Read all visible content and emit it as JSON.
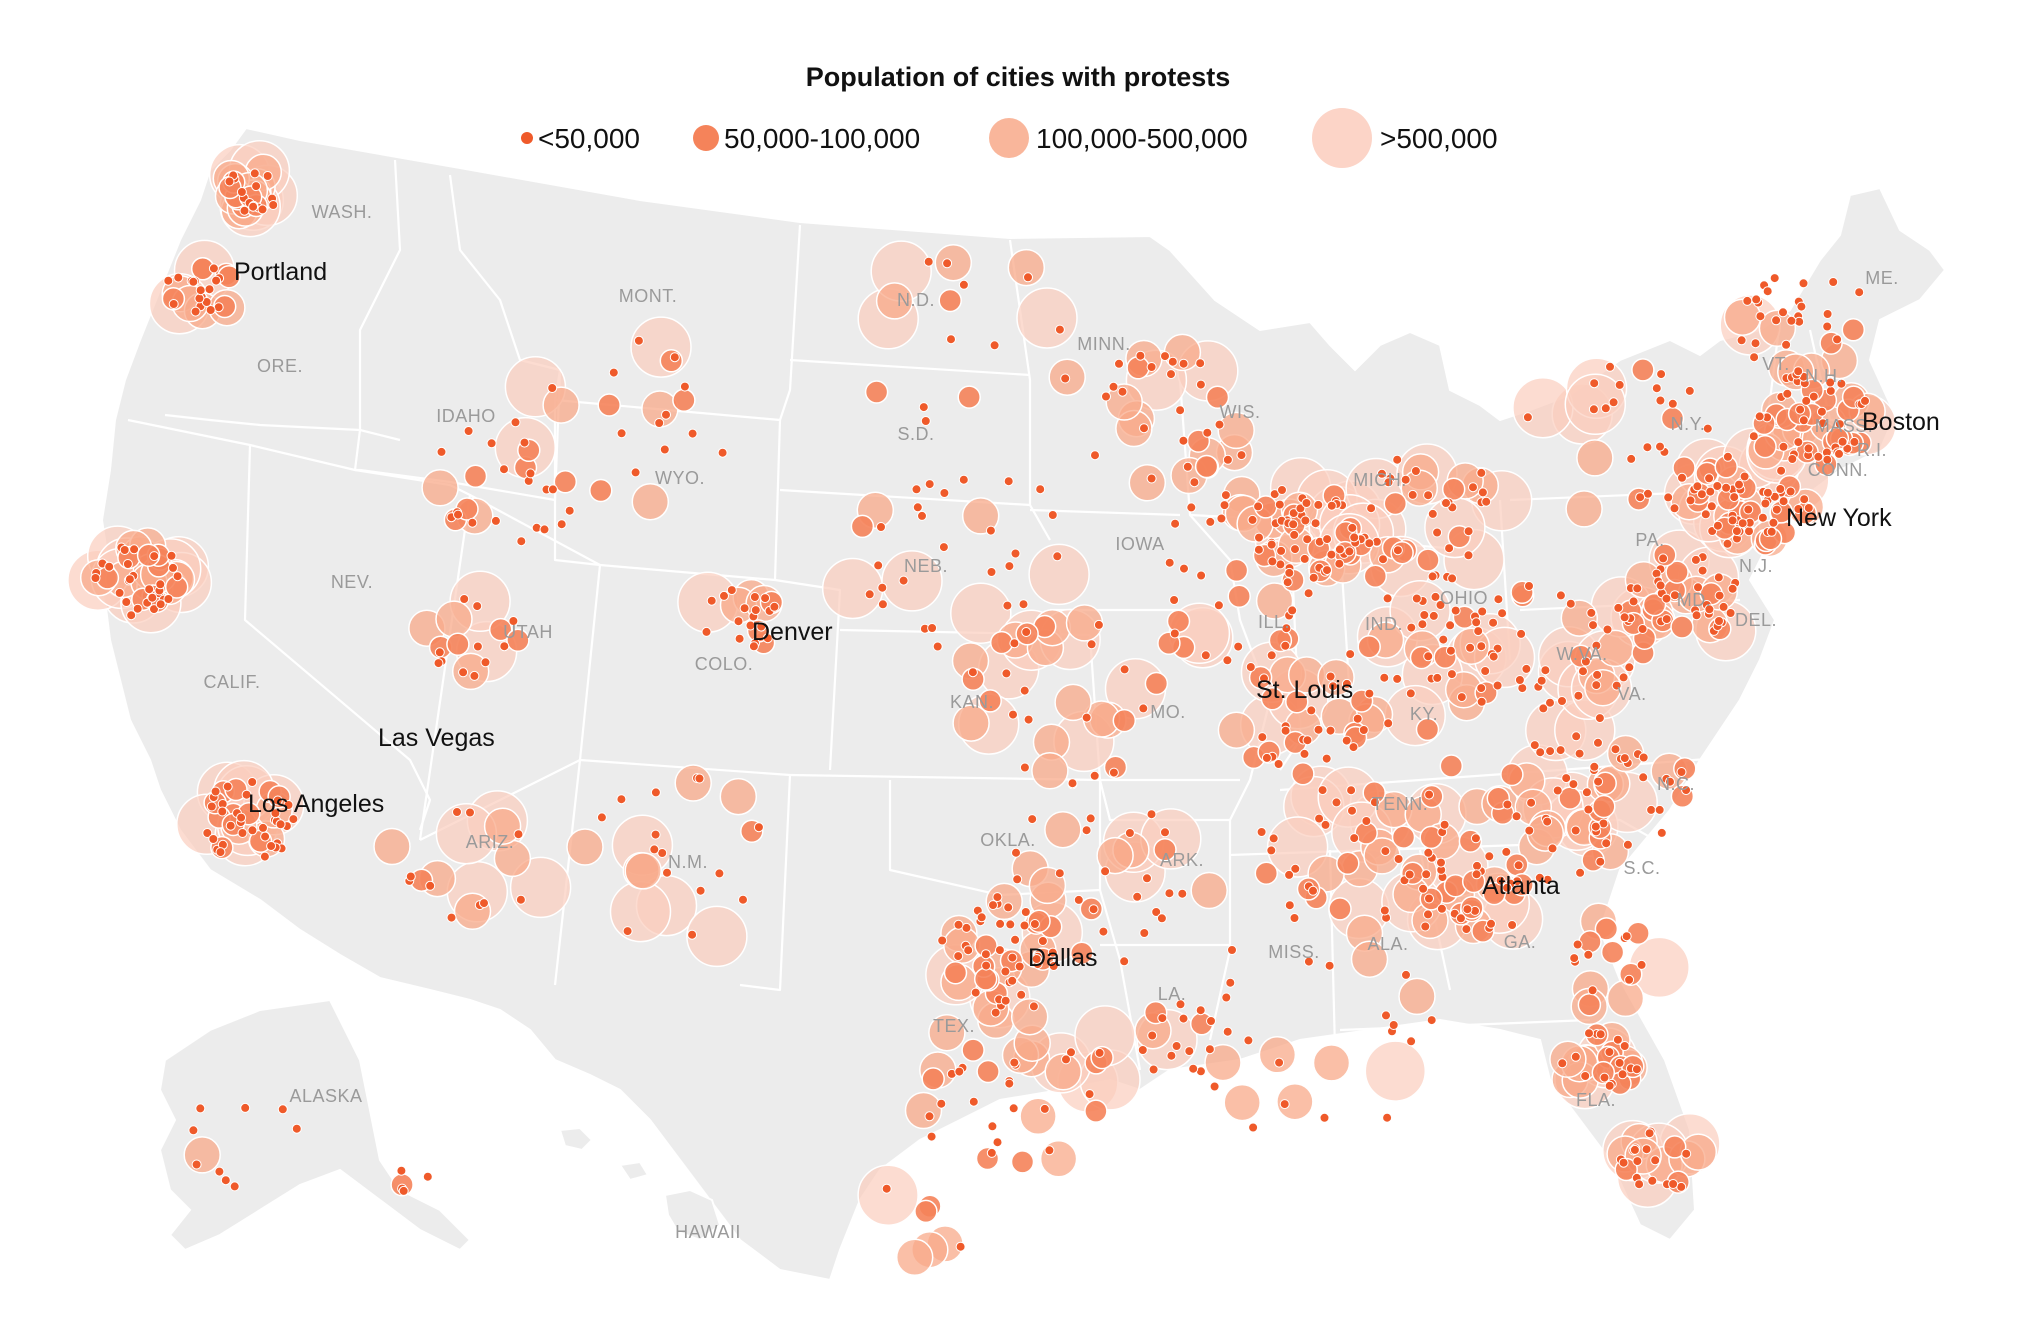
{
  "title": "Population of cities with protests",
  "legend": [
    {
      "label": "<50,000",
      "color": "#ef5a2a",
      "opacity": 1.0
    },
    {
      "label": "50,000-100,000",
      "color": "#f5835a",
      "opacity": 0.95
    },
    {
      "label": "100,000-500,000",
      "color": "#f8a98a",
      "opacity": 0.85
    },
    {
      "label": ">500,000",
      "color": "#fbcdbd",
      "opacity": 0.8
    }
  ],
  "state_labels": [
    "WASH.",
    "ORE.",
    "CALIF.",
    "NEV.",
    "IDAHO",
    "MONT.",
    "WYO.",
    "UTAH",
    "ARIZ.",
    "N.M.",
    "COLO.",
    "N.D.",
    "S.D.",
    "NEB.",
    "KAN.",
    "OKLA.",
    "TEX.",
    "MINN.",
    "IOWA",
    "MO.",
    "ARK.",
    "LA.",
    "WIS.",
    "ILL.",
    "MICH.",
    "IND.",
    "OHIO",
    "KY.",
    "TENN.",
    "MISS.",
    "ALA.",
    "GA.",
    "FLA.",
    "S.C.",
    "N.C.",
    "VA.",
    "W.VA.",
    "PA.",
    "N.Y.",
    "VT.",
    "N.H.",
    "ME.",
    "MASS.",
    "CONN.",
    "R.I.",
    "N.J.",
    "DEL.",
    "MD.",
    "ALASKA",
    "HAWAII"
  ],
  "city_labels": [
    "Portland",
    "Las Vegas",
    "Los Angeles",
    "Denver",
    "Dallas",
    "St. Louis",
    "Atlanta",
    "New York",
    "Boston"
  ]
}
